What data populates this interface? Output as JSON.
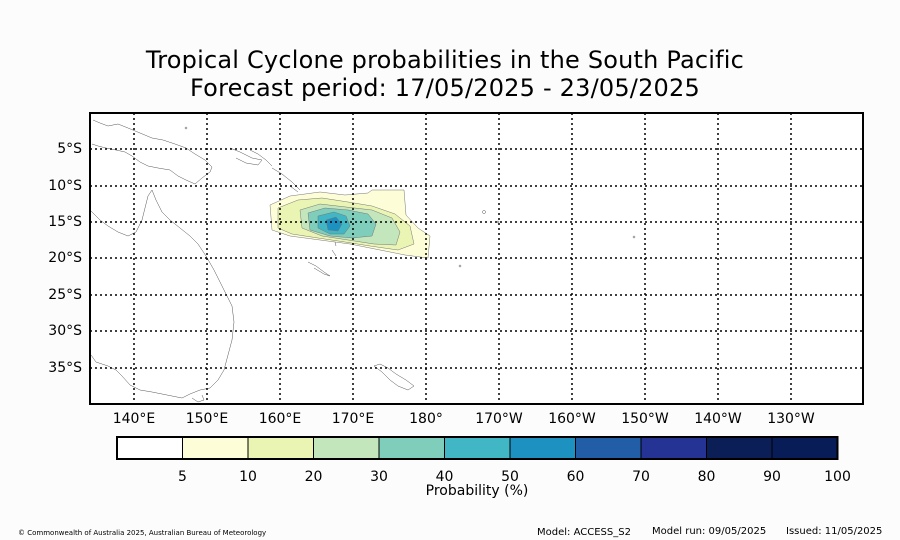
{
  "title": {
    "line1": "Tropical Cyclone probabilities in the South Pacific",
    "line2": "Forecast period: 17/05/2025 - 23/05/2025"
  },
  "map": {
    "lat_labels": [
      "5°S",
      "10°S",
      "15°S",
      "20°S",
      "25°S",
      "30°S",
      "35°S"
    ],
    "lon_labels": [
      "140°E",
      "150°E",
      "160°E",
      "170°E",
      "180°",
      "170°W",
      "160°W",
      "150°W",
      "140°W",
      "130°W"
    ],
    "grid_style": "dotted",
    "probability_region": "centred near 167°E 15°S, Solomon Sea / Coral Sea area"
  },
  "colorbar": {
    "title": "Probability (%)",
    "ticks": [
      "5",
      "10",
      "20",
      "30",
      "40",
      "50",
      "60",
      "70",
      "80",
      "90",
      "100"
    ],
    "colors": [
      "#ffffff",
      "#fdfdd7",
      "#eaf5b3",
      "#c4e6bc",
      "#7fcdbb",
      "#41b6c4",
      "#1d91c0",
      "#225ea8",
      "#253494",
      "#0b1f56",
      "#081d58"
    ]
  },
  "footer": {
    "copyright": "© Commonwealth of Australia 2025, Australian Bureau of Meteorology",
    "model": "Model: ACCESS_S2",
    "model_run": "Model run: 09/05/2025",
    "issued": "Issued: 11/05/2025"
  }
}
